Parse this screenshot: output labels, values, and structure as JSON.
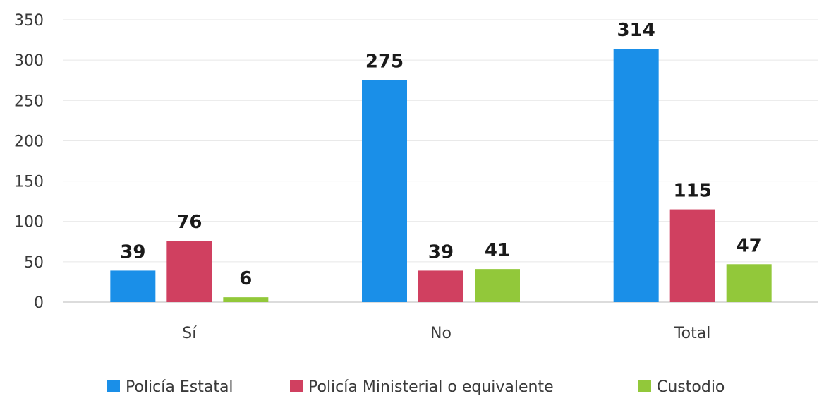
{
  "chart_data": {
    "type": "bar",
    "title": "",
    "xlabel": "",
    "ylabel": "",
    "categories": [
      "Sí",
      "No",
      "Total"
    ],
    "series": [
      {
        "name": "Policía Estatal",
        "values": [
          39,
          275,
          314
        ],
        "color": "#1a8fe8"
      },
      {
        "name": "Policía Ministerial o equivalente",
        "values": [
          76,
          39,
          115
        ],
        "color": "#d04060"
      },
      {
        "name": "Custodio",
        "values": [
          6,
          41,
          47
        ],
        "color": "#92c83a"
      }
    ],
    "ylim": [
      0,
      350
    ],
    "yticks": [
      0,
      50,
      100,
      150,
      200,
      250,
      300,
      350
    ],
    "grid": true,
    "legend_position": "bottom"
  }
}
